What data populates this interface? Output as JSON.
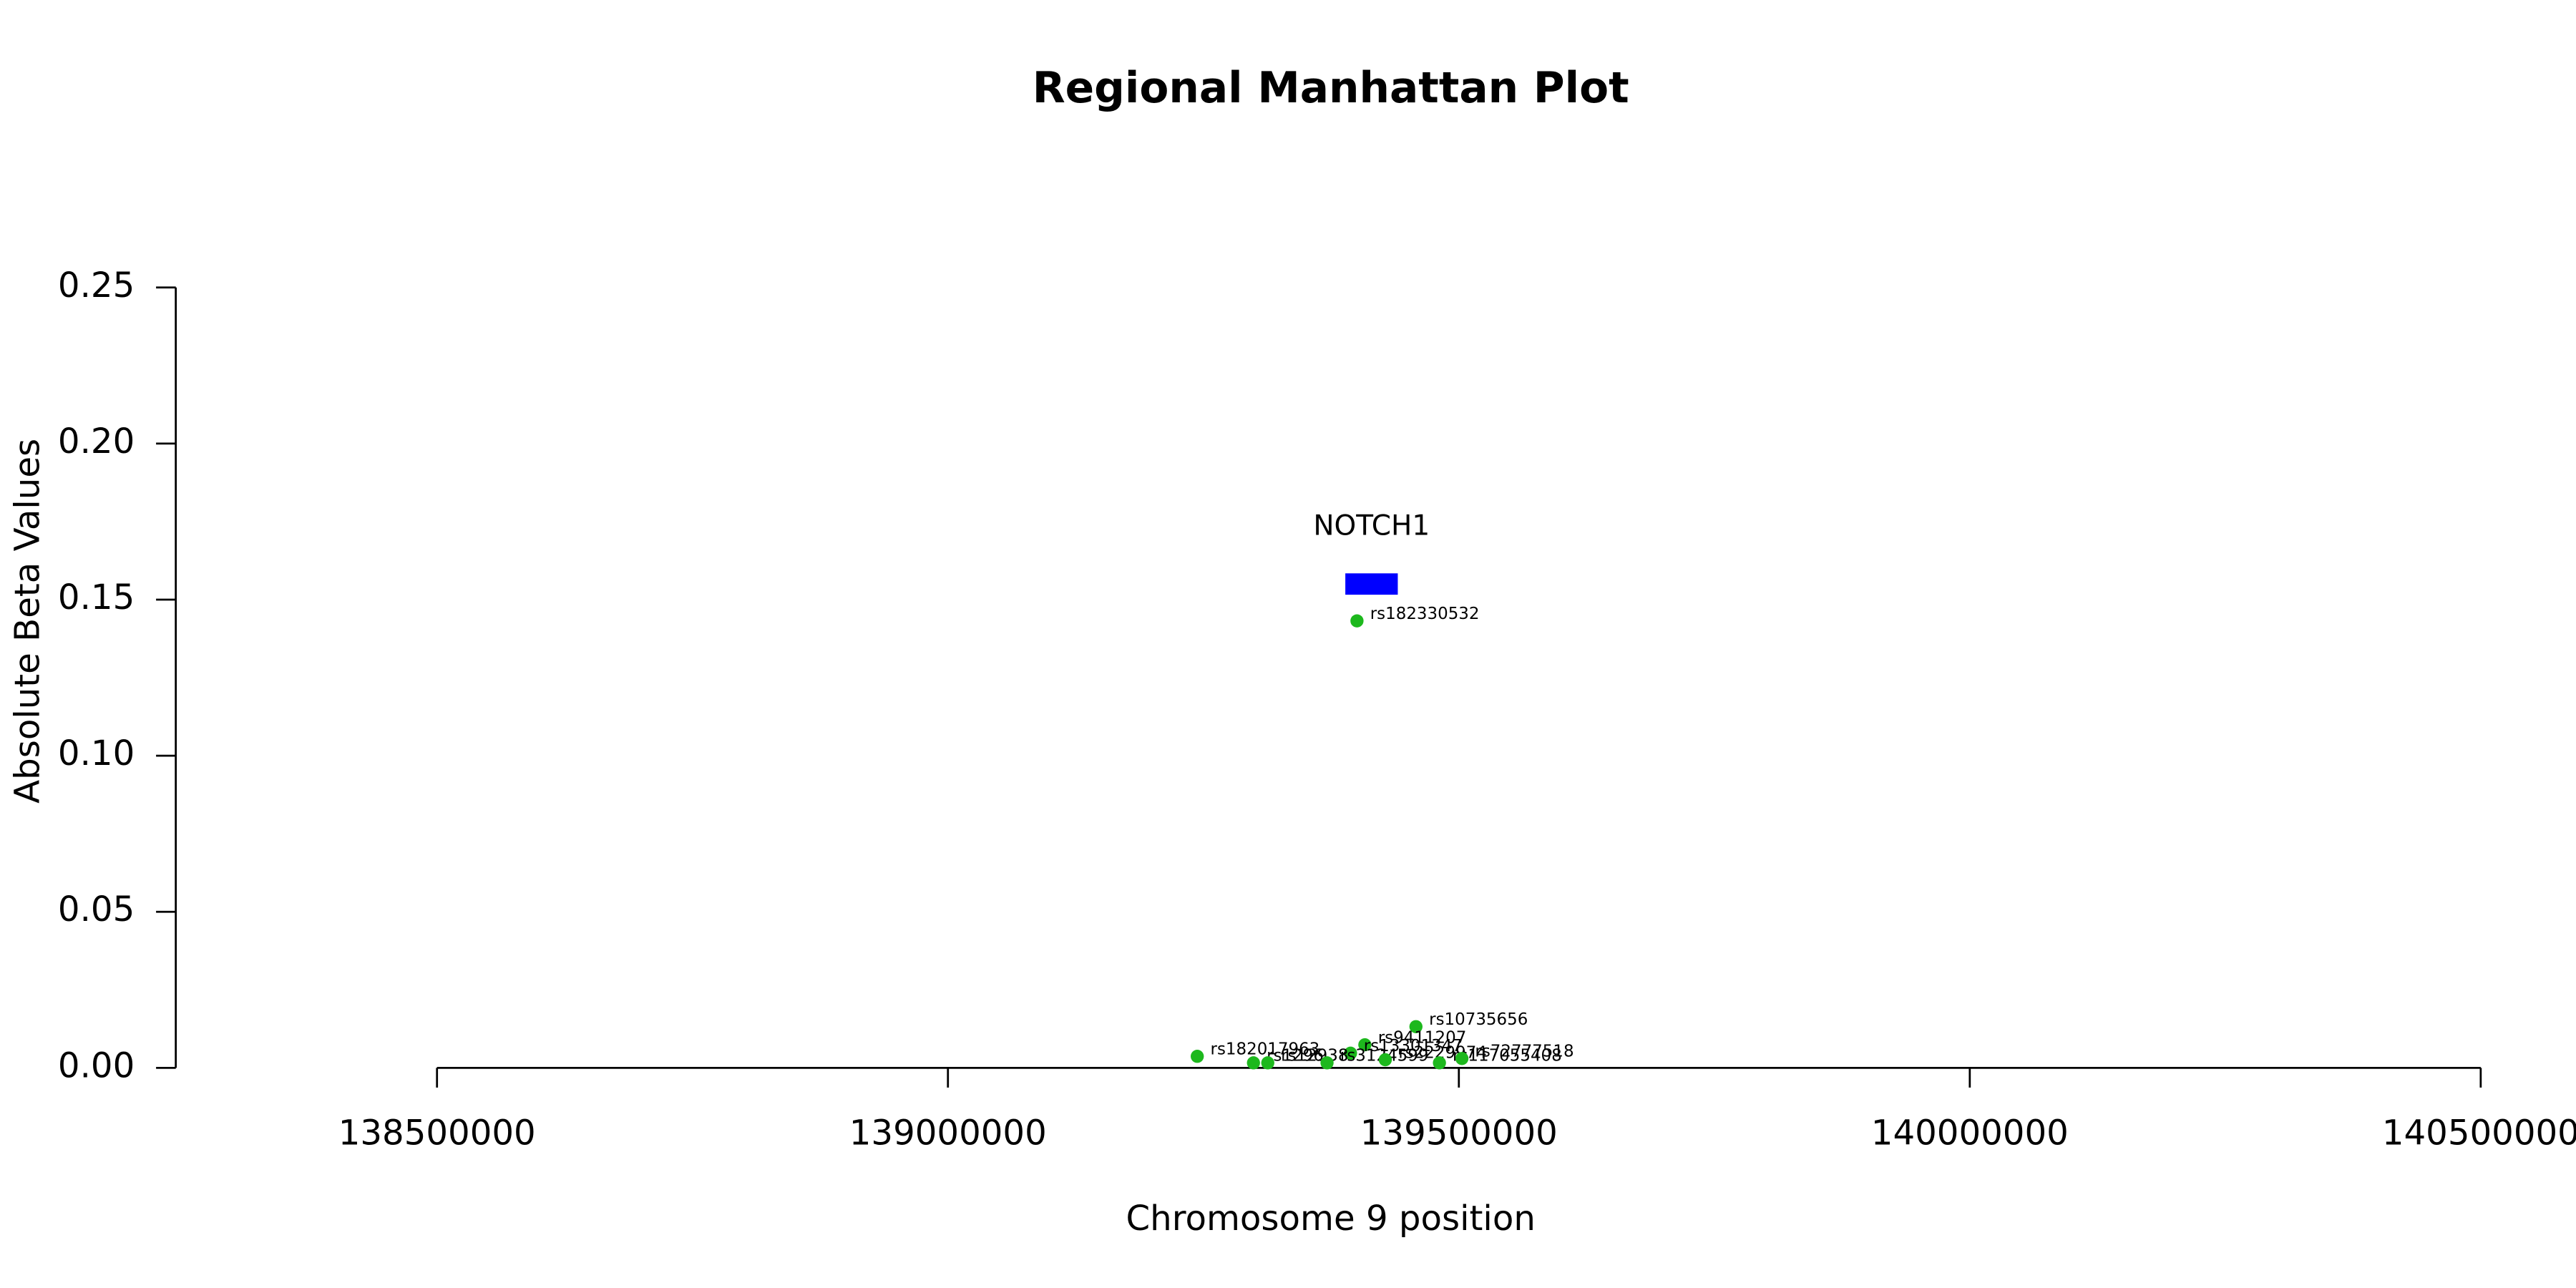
{
  "chart_data": {
    "type": "scatter",
    "title": "Regional Manhattan Plot",
    "x_label": "Chromosome 9 position",
    "y_label": "Absolute Beta Values",
    "x": [
      139400300,
      139458000,
      139244000,
      139408000,
      139394000,
      139299000,
      139313000,
      139371000,
      139428000,
      139481000,
      139503000
    ],
    "values": [
      0.1432,
      0.0132,
      0.0037,
      0.0074,
      0.0047,
      0.0016,
      0.0016,
      0.0016,
      0.0026,
      0.0016,
      0.003
    ],
    "point_labels": [
      "rs182330532",
      "rs10735656",
      "rs182017963",
      "rs9411207",
      "rs13301347",
      "rs1296",
      "rs12938",
      "rs3124599",
      "rs2229974",
      "rs117055408",
      "rs72777518"
    ],
    "color": "#1db81d",
    "gene": {
      "name": "NOTCH1",
      "start": 139388896,
      "end": 139440238,
      "color": "#0000ff"
    },
    "xlim": [
      138500000,
      140500000
    ],
    "xticks": [
      138500000,
      139000000,
      139500000,
      140000000,
      140500000
    ],
    "ylim": [
      0,
      0.25
    ],
    "yticks": [
      {
        "value": 0,
        "label": "0.00"
      },
      {
        "value": 0.05,
        "label": "0.05"
      },
      {
        "value": 0.1,
        "label": "0.10"
      },
      {
        "value": 0.15,
        "label": "0.15"
      },
      {
        "value": 0.2,
        "label": "0.20"
      },
      {
        "value": 0.25,
        "label": "0.25"
      }
    ]
  }
}
